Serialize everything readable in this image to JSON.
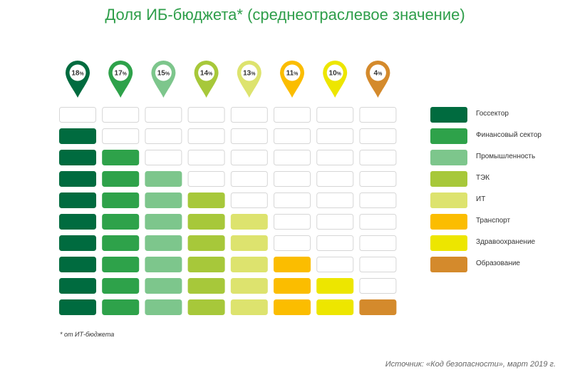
{
  "title": "Доля ИБ-бюджета* (среднеотраслевое значение)",
  "footnote": "* от ИТ-бюджета",
  "source": "Источник: «Код безопасности», март 2019 г.",
  "chart_data": {
    "type": "bar",
    "categories": [
      "Госсектор",
      "Финансовый сектор",
      "Промышленность",
      "ТЭК",
      "ИТ",
      "Транспорт",
      "Здравоохранение",
      "Образование"
    ],
    "values": [
      18,
      17,
      15,
      14,
      13,
      11,
      10,
      4
    ],
    "value_labels": [
      "18",
      "17",
      "15",
      "14",
      "13",
      "11",
      "10",
      "4"
    ],
    "value_suffix": "%",
    "filled_cells": [
      9,
      8,
      7,
      6,
      5,
      3,
      2,
      1
    ],
    "total_cells": 10,
    "colors": [
      "#006b3f",
      "#2ea24a",
      "#7dc68c",
      "#a7c83a",
      "#dde36e",
      "#fbbd00",
      "#ede600",
      "#d48a2c"
    ],
    "empty_cell_border": "#d6d6d6",
    "legend_position": "right"
  }
}
